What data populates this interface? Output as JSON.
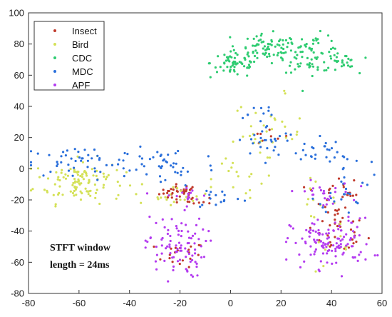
{
  "chart_data": {
    "type": "scatter",
    "title": "",
    "xlabel": "",
    "ylabel": "",
    "xlim": [
      -80,
      60
    ],
    "ylim": [
      -80,
      100
    ],
    "xticks": [
      -80,
      -60,
      -40,
      -20,
      0,
      20,
      40,
      60
    ],
    "yticks": [
      -80,
      -60,
      -40,
      -20,
      0,
      20,
      40,
      60,
      80,
      100
    ],
    "grid": false,
    "legend_position": "top-left",
    "annotation": {
      "line1": "STFT window",
      "line2": "length = 24ms"
    },
    "series": [
      {
        "name": "Insect",
        "color": "#c0392b",
        "clusters": [
          {
            "cx": -20,
            "cy": -15,
            "sx": 4,
            "sy": 2.5,
            "n": 35
          },
          {
            "cx": -12,
            "cy": -21,
            "sx": 2.5,
            "sy": 1.5,
            "n": 8
          },
          {
            "cx": -20,
            "cy": -55,
            "sx": 5,
            "sy": 4,
            "n": 20
          },
          {
            "cx": 15,
            "cy": 20,
            "sx": 4,
            "sy": 3,
            "n": 8
          },
          {
            "cx": 42,
            "cy": -40,
            "sx": 6,
            "sy": 8,
            "n": 35
          },
          {
            "cx": 46,
            "cy": -15,
            "sx": 2,
            "sy": 8,
            "n": 15
          },
          {
            "cx": 36,
            "cy": -14,
            "sx": 3,
            "sy": 2,
            "n": 6
          }
        ]
      },
      {
        "name": "Bird",
        "color": "#d4e157",
        "clusters": [
          {
            "cx": -60,
            "cy": -8,
            "sx": 9,
            "sy": 7,
            "n": 110
          },
          {
            "cx": -20,
            "cy": -17,
            "sx": 6,
            "sy": 3,
            "n": 20
          },
          {
            "cx": 15,
            "cy": 22,
            "sx": 7,
            "sy": 12,
            "n": 35
          },
          {
            "cx": 2,
            "cy": -5,
            "sx": 6,
            "sy": 6,
            "n": 12
          },
          {
            "cx": 30,
            "cy": -20,
            "sx": 6,
            "sy": 6,
            "n": 12
          },
          {
            "cx": 42,
            "cy": -55,
            "sx": 6,
            "sy": 6,
            "n": 10
          }
        ]
      },
      {
        "name": "CDC",
        "color": "#2ecc71",
        "clusters": [
          {
            "cx": 2,
            "cy": 68,
            "sx": 5,
            "sy": 5,
            "n": 60
          },
          {
            "cx": 15,
            "cy": 76,
            "sx": 6,
            "sy": 5,
            "n": 70
          },
          {
            "cx": 32,
            "cy": 74,
            "sx": 6,
            "sy": 6,
            "n": 70
          },
          {
            "cx": 44,
            "cy": 68,
            "sx": 3,
            "sy": 4,
            "n": 25
          }
        ]
      },
      {
        "name": "MDC",
        "color": "#2a6fdb",
        "clusters": [
          {
            "cx": -60,
            "cy": 4,
            "sx": 12,
            "sy": 5,
            "n": 50
          },
          {
            "cx": -25,
            "cy": 2,
            "sx": 10,
            "sy": 7,
            "n": 40
          },
          {
            "cx": -5,
            "cy": -18,
            "sx": 5,
            "sy": 4,
            "n": 15
          },
          {
            "cx": 15,
            "cy": 18,
            "sx": 6,
            "sy": 5,
            "n": 25
          },
          {
            "cx": 32,
            "cy": 12,
            "sx": 6,
            "sy": 5,
            "n": 20
          },
          {
            "cx": 45,
            "cy": -5,
            "sx": 5,
            "sy": 12,
            "n": 35
          },
          {
            "cx": 10,
            "cy": 35,
            "sx": 5,
            "sy": 4,
            "n": 10
          }
        ]
      },
      {
        "name": "APF",
        "color": "#b43cf0",
        "clusters": [
          {
            "cx": -22,
            "cy": -50,
            "sx": 6,
            "sy": 10,
            "n": 90
          },
          {
            "cx": 40,
            "cy": -48,
            "sx": 8,
            "sy": 8,
            "n": 120
          },
          {
            "cx": 36,
            "cy": -16,
            "sx": 6,
            "sy": 4,
            "n": 25
          },
          {
            "cx": -18,
            "cy": -17,
            "sx": 5,
            "sy": 3,
            "n": 15
          }
        ]
      }
    ]
  }
}
